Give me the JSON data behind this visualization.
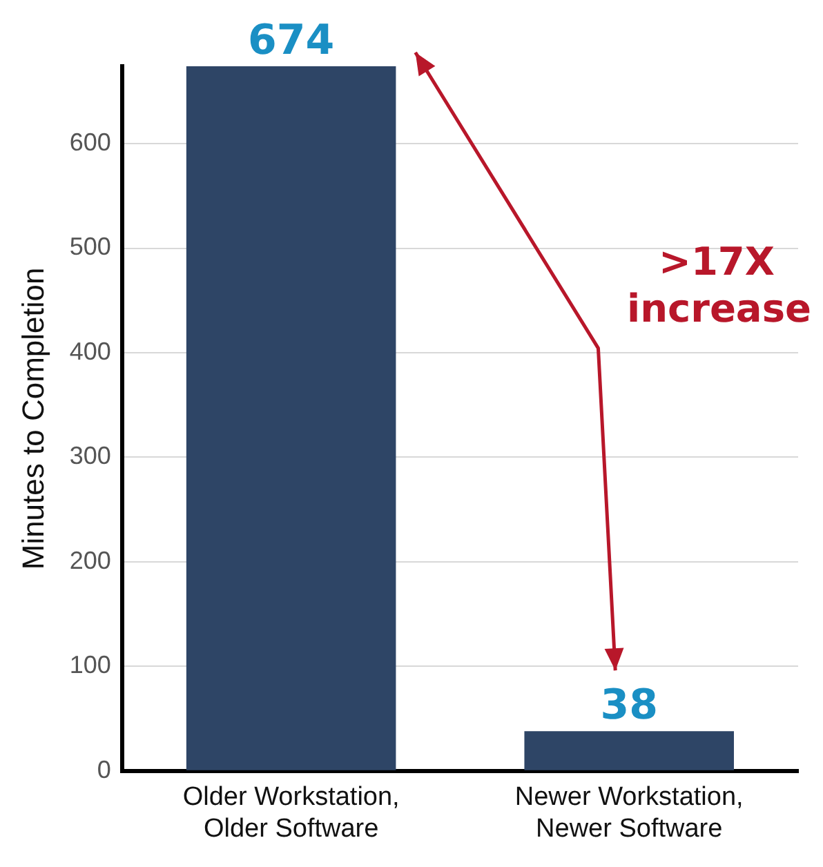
{
  "chart_data": {
    "type": "bar",
    "ylabel": "Minutes to Completion",
    "categories": [
      "Older Workstation, Older Software",
      "Newer Workstation, Newer Software"
    ],
    "values": [
      674,
      38
    ],
    "color": "#2e4566",
    "ylim": [
      0,
      674
    ],
    "yticks": [
      0,
      100,
      200,
      300,
      400,
      500,
      600
    ],
    "grid": "y",
    "data_labels": true,
    "annotations": [
      ">17X increase"
    ]
  }
}
